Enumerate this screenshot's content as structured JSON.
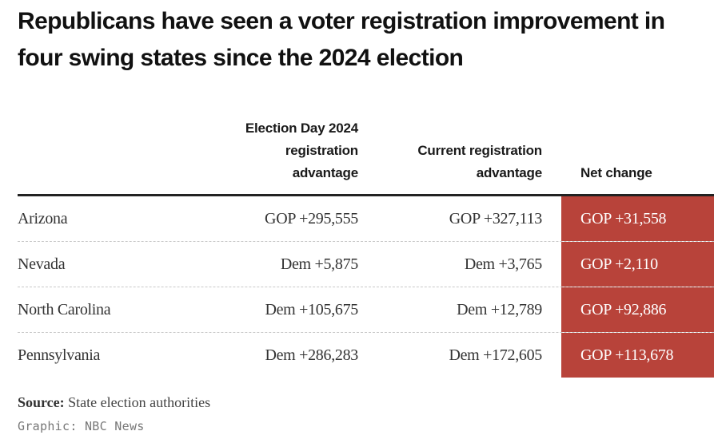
{
  "title": "Republicans have seen a voter registration improvement in four swing states since the 2024 election",
  "columns": {
    "election_day_line1": "Election Day 2024",
    "election_day_line2": "registration",
    "election_day_line3": "advantage",
    "current_line1": "Current registration",
    "current_line2": "advantage",
    "net_change": "Net change"
  },
  "chart_data": {
    "type": "table",
    "columns": [
      "",
      "Election Day 2024 registration advantage",
      "Current registration advantage",
      "Net change"
    ],
    "rows": [
      {
        "state": "Arizona",
        "election_day": "GOP +295,555",
        "current": "GOP +327,113",
        "net": "GOP +31,558"
      },
      {
        "state": "Nevada",
        "election_day": "Dem +5,875",
        "current": "Dem +3,765",
        "net": "GOP +2,110"
      },
      {
        "state": "North Carolina",
        "election_day": "Dem +105,675",
        "current": "Dem +12,789",
        "net": "GOP +92,886"
      },
      {
        "state": "Pennsylvania",
        "election_day": "Dem +286,283",
        "current": "Dem +172,605",
        "net": "GOP +113,678"
      }
    ]
  },
  "colors": {
    "highlight": "#b8433a",
    "rule": "#222222"
  },
  "source_label": "Source:",
  "source_text": " State election authorities",
  "credit": "Graphic: NBC News"
}
